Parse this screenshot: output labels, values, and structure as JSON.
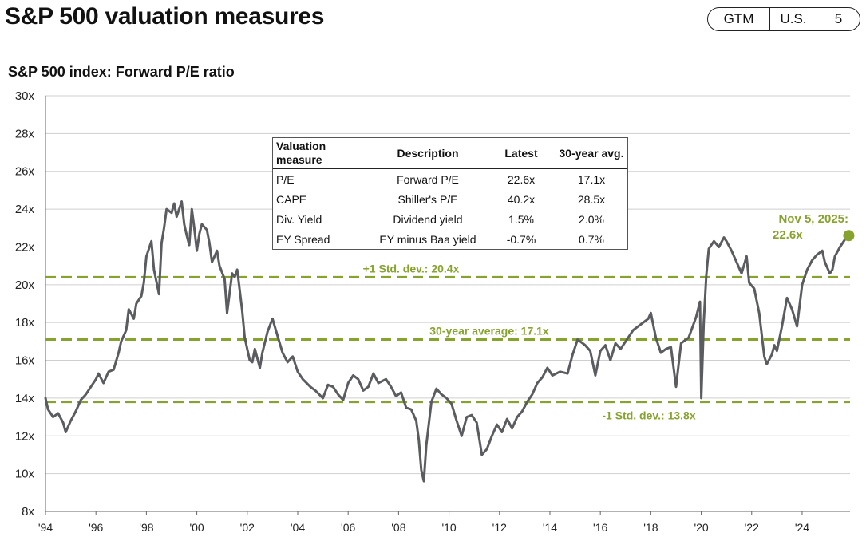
{
  "header": {
    "title": "S&P 500 valuation measures",
    "badge": [
      "GTM",
      "U.S.",
      "5"
    ]
  },
  "colors": {
    "series": "#5a5c60",
    "accent": "#86a32e",
    "grid": "#cfcfcf"
  },
  "chart_data": {
    "type": "line",
    "title": "S&P 500 index: Forward P/E ratio",
    "xlim": [
      1994,
      2025.9
    ],
    "ylim": [
      8,
      30
    ],
    "y_ticks": [
      8,
      10,
      12,
      14,
      16,
      18,
      20,
      22,
      24,
      26,
      28,
      30
    ],
    "y_tick_labels": [
      "8x",
      "10x",
      "12x",
      "14x",
      "16x",
      "18x",
      "20x",
      "22x",
      "24x",
      "26x",
      "28x",
      "30x"
    ],
    "x_ticks": [
      1994,
      1996,
      1998,
      2000,
      2002,
      2004,
      2006,
      2008,
      2010,
      2012,
      2014,
      2016,
      2018,
      2020,
      2022,
      2024
    ],
    "x_tick_labels": [
      "'94",
      "'96",
      "'98",
      "'00",
      "'02",
      "'04",
      "'06",
      "'08",
      "'10",
      "'12",
      "'14",
      "'16",
      "'18",
      "'20",
      "'22",
      "'24"
    ],
    "reference_lines": [
      {
        "value": 20.4,
        "label": "+1 Std. dev.: 20.4x"
      },
      {
        "value": 17.1,
        "label": "30-year average: 17.1x"
      },
      {
        "value": 13.8,
        "label": "-1 Std. dev.: 13.8x"
      }
    ],
    "latest": {
      "x": 2025.85,
      "y": 22.6,
      "label_line1": "Nov 5, 2025:",
      "label_line2": "22.6x"
    },
    "series": [
      {
        "name": "Forward P/E",
        "x": [
          1994.0,
          1994.1,
          1994.3,
          1994.5,
          1994.7,
          1994.8,
          1995.0,
          1995.2,
          1995.4,
          1995.6,
          1995.8,
          1996.0,
          1996.1,
          1996.3,
          1996.5,
          1996.7,
          1996.9,
          1997.0,
          1997.2,
          1997.3,
          1997.5,
          1997.6,
          1997.8,
          1997.9,
          1998.0,
          1998.2,
          1998.3,
          1998.5,
          1998.6,
          1998.7,
          1998.8,
          1999.0,
          1999.1,
          1999.2,
          1999.4,
          1999.5,
          1999.6,
          1999.7,
          1999.8,
          1999.9,
          2000.0,
          2000.1,
          2000.2,
          2000.4,
          2000.5,
          2000.6,
          2000.8,
          2000.9,
          2001.1,
          2001.2,
          2001.4,
          2001.5,
          2001.6,
          2001.8,
          2001.9,
          2002.1,
          2002.2,
          2002.3,
          2002.5,
          2002.6,
          2002.8,
          2003.0,
          2003.2,
          2003.4,
          2003.6,
          2003.8,
          2004.0,
          2004.2,
          2004.5,
          2004.7,
          2005.0,
          2005.2,
          2005.4,
          2005.6,
          2005.8,
          2006.0,
          2006.2,
          2006.4,
          2006.6,
          2006.8,
          2007.0,
          2007.2,
          2007.5,
          2007.7,
          2007.9,
          2008.1,
          2008.3,
          2008.5,
          2008.7,
          2008.8,
          2008.9,
          2009.0,
          2009.1,
          2009.3,
          2009.5,
          2009.7,
          2009.9,
          2010.1,
          2010.3,
          2010.5,
          2010.7,
          2010.9,
          2011.1,
          2011.3,
          2011.5,
          2011.7,
          2011.9,
          2012.1,
          2012.3,
          2012.5,
          2012.7,
          2012.9,
          2013.1,
          2013.3,
          2013.5,
          2013.7,
          2013.9,
          2014.1,
          2014.4,
          2014.7,
          2014.9,
          2015.1,
          2015.4,
          2015.6,
          2015.8,
          2016.0,
          2016.2,
          2016.4,
          2016.6,
          2016.8,
          2017.0,
          2017.3,
          2017.6,
          2017.9,
          2018.0,
          2018.2,
          2018.4,
          2018.6,
          2018.8,
          2019.0,
          2019.2,
          2019.5,
          2019.8,
          2019.95,
          2020.0,
          2020.1,
          2020.2,
          2020.3,
          2020.5,
          2020.7,
          2020.9,
          2021.0,
          2021.2,
          2021.4,
          2021.6,
          2021.8,
          2021.9,
          2022.1,
          2022.3,
          2022.5,
          2022.6,
          2022.8,
          2022.9,
          2023.0,
          2023.2,
          2023.4,
          2023.6,
          2023.8,
          2024.0,
          2024.2,
          2024.4,
          2024.6,
          2024.8,
          2024.9,
          2025.1,
          2025.2,
          2025.3,
          2025.5,
          2025.7,
          2025.85
        ],
        "values": [
          14.0,
          13.4,
          13.0,
          13.2,
          12.7,
          12.2,
          12.8,
          13.3,
          13.9,
          14.2,
          14.6,
          15.0,
          15.3,
          14.8,
          15.4,
          15.5,
          16.4,
          17.0,
          17.6,
          18.7,
          18.2,
          19.0,
          19.4,
          20.1,
          21.5,
          22.3,
          20.8,
          19.5,
          22.2,
          23.0,
          24.0,
          23.8,
          24.3,
          23.6,
          24.4,
          23.2,
          22.6,
          22.1,
          24.0,
          23.0,
          21.8,
          22.7,
          23.2,
          22.9,
          22.2,
          21.2,
          21.8,
          21.0,
          20.3,
          18.5,
          20.6,
          20.4,
          20.8,
          18.6,
          17.2,
          16.0,
          15.9,
          16.6,
          15.6,
          16.4,
          17.5,
          18.2,
          17.3,
          16.4,
          15.9,
          16.2,
          15.4,
          15.0,
          14.6,
          14.4,
          14.0,
          14.7,
          14.6,
          14.2,
          13.9,
          14.8,
          15.2,
          15.0,
          14.4,
          14.6,
          15.3,
          14.8,
          15.0,
          14.6,
          14.1,
          14.3,
          13.5,
          13.4,
          12.8,
          11.8,
          10.2,
          9.6,
          11.5,
          13.8,
          14.5,
          14.2,
          14.0,
          13.7,
          12.8,
          12.0,
          13.0,
          13.1,
          12.7,
          11.0,
          11.3,
          12.0,
          12.6,
          12.2,
          12.9,
          12.4,
          13.0,
          13.3,
          13.8,
          14.2,
          14.8,
          15.1,
          15.6,
          15.2,
          15.4,
          15.3,
          16.3,
          17.1,
          16.8,
          16.5,
          15.2,
          16.5,
          16.8,
          16.0,
          16.9,
          16.6,
          17.0,
          17.6,
          17.9,
          18.2,
          18.5,
          17.2,
          16.4,
          16.6,
          16.7,
          14.6,
          16.9,
          17.2,
          18.3,
          19.1,
          14.0,
          18.0,
          20.5,
          21.9,
          22.3,
          22.0,
          22.5,
          22.3,
          21.8,
          21.2,
          20.6,
          21.5,
          20.1,
          19.8,
          18.5,
          16.2,
          15.8,
          16.3,
          16.8,
          16.5,
          17.8,
          19.3,
          18.7,
          17.8,
          20.0,
          20.8,
          21.3,
          21.6,
          21.8,
          21.2,
          20.6,
          20.8,
          21.5,
          22.0,
          22.4,
          22.6
        ]
      }
    ],
    "xlabel": "",
    "ylabel": ""
  },
  "table": {
    "headers": [
      "Valuation measure",
      "Description",
      "Latest",
      "30-year avg."
    ],
    "rows": [
      [
        "P/E",
        "Forward P/E",
        "22.6x",
        "17.1x"
      ],
      [
        "CAPE",
        "Shiller's P/E",
        "40.2x",
        "28.5x"
      ],
      [
        "Div. Yield",
        "Dividend yield",
        "1.5%",
        "2.0%"
      ],
      [
        "EY Spread",
        "EY minus Baa yield",
        "-0.7%",
        "0.7%"
      ]
    ]
  }
}
